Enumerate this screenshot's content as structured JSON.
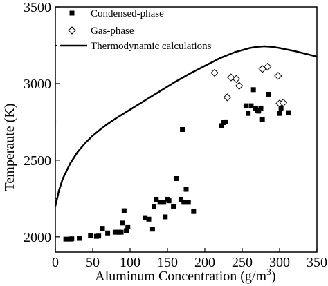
{
  "chart_data": {
    "type": "scatter",
    "xlabel": "Aluminum Concentration (g/m",
    "xlabel_sup": "3",
    "xlabel_end": ")",
    "ylabel": "Temperaute (K)",
    "xlim": [
      0,
      350
    ],
    "ylim": [
      1900,
      3500
    ],
    "xticks": [
      0,
      50,
      100,
      150,
      200,
      250,
      300,
      350
    ],
    "yticks": [
      2000,
      2500,
      3000,
      3500
    ],
    "grid": false,
    "legend_placement": "top-left",
    "series": [
      {
        "name": "Condensed-phase",
        "marker": "filled-square",
        "color": "#000000",
        "points": [
          [
            14,
            1985
          ],
          [
            20,
            1985
          ],
          [
            22,
            1987
          ],
          [
            32,
            1990
          ],
          [
            47,
            2010
          ],
          [
            55,
            2003
          ],
          [
            58,
            2005
          ],
          [
            63,
            2055
          ],
          [
            70,
            2025
          ],
          [
            80,
            2030
          ],
          [
            85,
            2030
          ],
          [
            88,
            2030
          ],
          [
            90,
            2090
          ],
          [
            92,
            2170
          ],
          [
            95,
            2040
          ],
          [
            97,
            2065
          ],
          [
            120,
            2125
          ],
          [
            125,
            2115
          ],
          [
            130,
            2050
          ],
          [
            132,
            2195
          ],
          [
            135,
            2245
          ],
          [
            140,
            2225
          ],
          [
            145,
            2225
          ],
          [
            147,
            2130
          ],
          [
            150,
            2245
          ],
          [
            152,
            2235
          ],
          [
            158,
            2200
          ],
          [
            162,
            2380
          ],
          [
            168,
            2245
          ],
          [
            170,
            2700
          ],
          [
            172,
            2225
          ],
          [
            175,
            2310
          ],
          [
            178,
            2225
          ],
          [
            185,
            2165
          ],
          [
            222,
            2725
          ],
          [
            225,
            2745
          ],
          [
            228,
            2750
          ],
          [
            255,
            2855
          ],
          [
            258,
            2805
          ],
          [
            262,
            2855
          ],
          [
            265,
            2960
          ],
          [
            268,
            2840
          ],
          [
            270,
            2825
          ],
          [
            272,
            2820
          ],
          [
            275,
            2840
          ],
          [
            277,
            2765
          ],
          [
            285,
            2930
          ],
          [
            300,
            2805
          ],
          [
            302,
            2840
          ],
          [
            312,
            2810
          ]
        ]
      },
      {
        "name": "Gas-phase",
        "marker": "open-diamond",
        "color": "#000000",
        "points": [
          [
            213,
            3070
          ],
          [
            230,
            2910
          ],
          [
            235,
            3040
          ],
          [
            242,
            3030
          ],
          [
            246,
            2985
          ],
          [
            277,
            3095
          ],
          [
            284,
            3110
          ],
          [
            298,
            3050
          ],
          [
            300,
            2870
          ],
          [
            305,
            2875
          ]
        ]
      },
      {
        "name": "Thermodynamic calculations",
        "style": "solid-line",
        "color": "#000000",
        "points": [
          [
            0,
            2200
          ],
          [
            5,
            2305
          ],
          [
            10,
            2380
          ],
          [
            20,
            2480
          ],
          [
            30,
            2555
          ],
          [
            40,
            2612
          ],
          [
            50,
            2660
          ],
          [
            60,
            2700
          ],
          [
            70,
            2737
          ],
          [
            80,
            2770
          ],
          [
            90,
            2800
          ],
          [
            100,
            2830
          ],
          [
            120,
            2890
          ],
          [
            140,
            2950
          ],
          [
            160,
            3010
          ],
          [
            180,
            3065
          ],
          [
            200,
            3115
          ],
          [
            220,
            3165
          ],
          [
            240,
            3205
          ],
          [
            260,
            3232
          ],
          [
            270,
            3240
          ],
          [
            280,
            3243
          ],
          [
            290,
            3240
          ],
          [
            300,
            3232
          ],
          [
            320,
            3212
          ],
          [
            340,
            3188
          ],
          [
            350,
            3175
          ]
        ]
      }
    ]
  }
}
